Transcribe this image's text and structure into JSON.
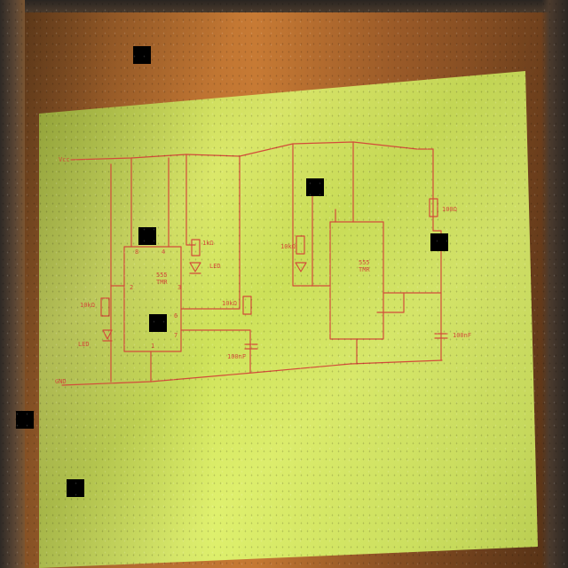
{
  "photo": {
    "subject": "Hand-drawn circuit schematic on a sticky note",
    "colors": {
      "paper": "#cfe35a",
      "paper_shadow": "#a8b83c",
      "ink": "#d24b3a",
      "wood_light": "#c77a34",
      "wood_dark": "#6d3f1c",
      "occluder": "#000000"
    },
    "schematic_labels": {
      "r_left": "10kΩ",
      "r_top_left": "1kΩ",
      "r_mid": "10kΩ",
      "r_mid_right": "10kΩ",
      "r_right": "100Ω",
      "cap_left": "100nF",
      "cap_right": "100nF",
      "ic_left_1": "555",
      "ic_left_2": "TMR",
      "ic_right_1": "555",
      "ic_right_2": "TMR",
      "pin_2": "2",
      "pin_3": "3",
      "pin_6": "6",
      "pin_7": "7",
      "pin_8": "8",
      "pin_4": "4",
      "pin_1": "1",
      "vcc": "Vcc",
      "gnd": "GND",
      "led_left": "LED",
      "led_right": "LED"
    }
  }
}
